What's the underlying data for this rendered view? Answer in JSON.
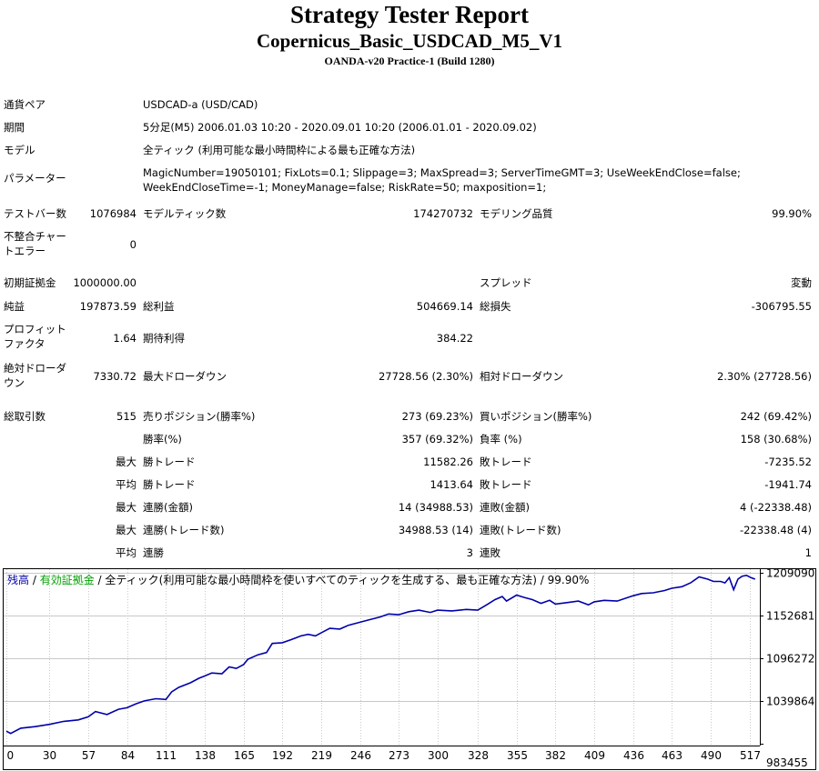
{
  "header": {
    "title": "Strategy Tester Report",
    "subtitle": "Copernicus_Basic_USDCAD_M5_V1",
    "server": "OANDA-v20 Practice-1 (Build 1280)"
  },
  "info": {
    "pair_label": "通貨ペア",
    "pair": "USDCAD-a (USD/CAD)",
    "period_label": "期間",
    "period": "5分足(M5) 2006.01.03 10:20 - 2020.09.01 10:20 (2006.01.01 - 2020.09.02)",
    "model_label": "モデル",
    "model": "全ティック (利用可能な最小時間枠による最も正確な方法)",
    "params_label": "パラメーター",
    "params": "MagicNumber=19050101; FixLots=0.1; Slippage=3; MaxSpread=3; ServerTimeGMT=3; UseWeekEndClose=false; WeekEndCloseTime=-1; MoneyManage=false; RiskRate=50; maxposition=1;"
  },
  "stats": {
    "bars_label": "テストバー数",
    "bars": "1076984",
    "ticks_label": "モデルティック数",
    "ticks": "174270732",
    "quality_label": "モデリング品質",
    "quality": "99.90%",
    "mismatch_label": "不整合チャートエラー",
    "mismatch": "0",
    "deposit_label": "初期証拠金",
    "deposit": "1000000.00",
    "spread_label": "スプレッド",
    "spread": "変動",
    "net_label": "純益",
    "net": "197873.59",
    "gross_profit_label": "総利益",
    "gross_profit": "504669.14",
    "gross_loss_label": "総損失",
    "gross_loss": "-306795.55",
    "pf_label": "プロフィットファクタ",
    "pf": "1.64",
    "expected_label": "期待利得",
    "expected": "384.22",
    "abs_dd_label": "絶対ドローダウン",
    "abs_dd": "7330.72",
    "max_dd_label": "最大ドローダウン",
    "max_dd": "27728.56 (2.30%)",
    "rel_dd_label": "相対ドローダウン",
    "rel_dd": "2.30% (27728.56)",
    "trades_label": "総取引数",
    "trades": "515",
    "short_label": "売りポジション(勝率%)",
    "short": "273 (69.23%)",
    "long_label": "買いポジション(勝率%)",
    "long": "242 (69.42%)",
    "win_label": "勝率(%)",
    "win": "357 (69.32%)",
    "loss_label": "負率 (%)",
    "loss": "158 (30.68%)",
    "max_label": "最大",
    "avg_label": "平均",
    "win_trade_label": "勝トレード",
    "lose_trade_label": "敗トレード",
    "max_win": "11582.26",
    "max_loss": "-7235.52",
    "avg_win": "1413.64",
    "avg_loss": "-1941.74",
    "cons_wins_money_label": "連勝(金額)",
    "cons_wins_money": "14 (34988.53)",
    "cons_loss_money_label": "連敗(金額)",
    "cons_loss_money": "4 (-22338.48)",
    "cons_wins_count_label": "連勝(トレード数)",
    "cons_wins_count": "34988.53 (14)",
    "cons_loss_count_label": "連敗(トレード数)",
    "cons_loss_count": "-22338.48 (4)",
    "avg_cons_wins_label": "連勝",
    "avg_cons_wins": "3",
    "avg_cons_loss_label": "連敗",
    "avg_cons_loss": "1"
  },
  "chart_data": {
    "type": "line",
    "legend": {
      "balance": "残高",
      "sep": " / ",
      "equity": "有効証拠金",
      "rest": " / 全ティック(利用可能な最小時間枠を使いすべてのティックを生成する、最も正確な方法) / 99.90%"
    },
    "colors": {
      "balance": "#0000aa",
      "equity": "#00a000",
      "legend_text": "#000000",
      "grid": "#c8c8c8"
    },
    "x_ticks": [
      0,
      30,
      57,
      84,
      111,
      138,
      165,
      192,
      219,
      246,
      273,
      300,
      328,
      355,
      382,
      409,
      436,
      463,
      490,
      517
    ],
    "y_ticks": [
      983455,
      1039864,
      1096272,
      1152681,
      1209090
    ],
    "xlim": [
      0,
      523
    ],
    "ylim": [
      983455,
      1213000
    ],
    "grid": true,
    "series": [
      {
        "name": "残高",
        "points": [
          [
            0,
            1000000
          ],
          [
            3,
            997000
          ],
          [
            10,
            1004000
          ],
          [
            20,
            1006000
          ],
          [
            30,
            1009000
          ],
          [
            40,
            1013000
          ],
          [
            50,
            1015000
          ],
          [
            57,
            1019000
          ],
          [
            62,
            1026000
          ],
          [
            70,
            1022000
          ],
          [
            78,
            1029000
          ],
          [
            84,
            1031000
          ],
          [
            90,
            1036000
          ],
          [
            96,
            1040000
          ],
          [
            104,
            1043000
          ],
          [
            111,
            1042000
          ],
          [
            115,
            1052000
          ],
          [
            120,
            1058000
          ],
          [
            128,
            1064000
          ],
          [
            134,
            1070000
          ],
          [
            138,
            1073000
          ],
          [
            143,
            1077000
          ],
          [
            150,
            1076000
          ],
          [
            155,
            1085000
          ],
          [
            160,
            1083000
          ],
          [
            165,
            1088000
          ],
          [
            168,
            1095000
          ],
          [
            175,
            1101000
          ],
          [
            181,
            1104000
          ],
          [
            185,
            1116000
          ],
          [
            192,
            1117000
          ],
          [
            198,
            1121000
          ],
          [
            205,
            1126000
          ],
          [
            210,
            1128000
          ],
          [
            215,
            1126000
          ],
          [
            219,
            1130000
          ],
          [
            225,
            1136000
          ],
          [
            232,
            1135000
          ],
          [
            238,
            1140000
          ],
          [
            246,
            1144000
          ],
          [
            252,
            1147000
          ],
          [
            260,
            1151000
          ],
          [
            266,
            1155000
          ],
          [
            273,
            1154000
          ],
          [
            280,
            1158000
          ],
          [
            287,
            1160000
          ],
          [
            295,
            1157000
          ],
          [
            300,
            1160000
          ],
          [
            310,
            1159000
          ],
          [
            320,
            1161000
          ],
          [
            328,
            1160000
          ],
          [
            335,
            1168000
          ],
          [
            340,
            1174000
          ],
          [
            345,
            1178000
          ],
          [
            348,
            1172000
          ],
          [
            355,
            1180000
          ],
          [
            360,
            1177000
          ],
          [
            366,
            1174000
          ],
          [
            372,
            1169000
          ],
          [
            378,
            1173000
          ],
          [
            382,
            1168000
          ],
          [
            390,
            1170000
          ],
          [
            398,
            1172000
          ],
          [
            405,
            1167000
          ],
          [
            409,
            1171000
          ],
          [
            416,
            1173000
          ],
          [
            425,
            1172000
          ],
          [
            436,
            1179000
          ],
          [
            442,
            1182000
          ],
          [
            450,
            1183000
          ],
          [
            458,
            1186000
          ],
          [
            463,
            1189000
          ],
          [
            470,
            1191000
          ],
          [
            476,
            1196000
          ],
          [
            482,
            1204000
          ],
          [
            488,
            1201000
          ],
          [
            492,
            1198000
          ],
          [
            497,
            1198000
          ],
          [
            500,
            1196000
          ],
          [
            503,
            1203000
          ],
          [
            506,
            1187000
          ],
          [
            509,
            1201000
          ],
          [
            512,
            1205000
          ],
          [
            515,
            1206000
          ],
          [
            518,
            1203000
          ],
          [
            521,
            1201000
          ]
        ]
      }
    ]
  }
}
